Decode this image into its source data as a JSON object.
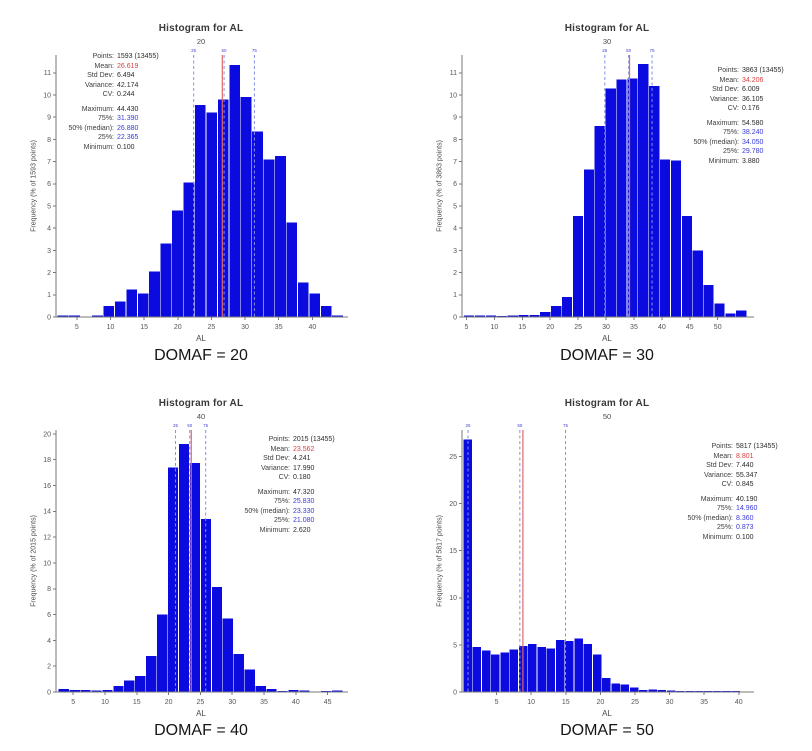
{
  "colors": {
    "bar": "#0b0be0",
    "axis": "#7a7a7a",
    "tick_text": "#555555",
    "mean_line": "#e06868",
    "quartile_line": "#8090e8",
    "marker_text": "#4444cc",
    "stat_red": "#d94040",
    "stat_blue": "#3a3ad9"
  },
  "chart_data": [
    {
      "type": "bar",
      "subtype": "histogram",
      "title": "Histogram for AL",
      "subtitle": "20",
      "caption": "DOMAF = 20",
      "xlabel": "AL",
      "ylabel": "Frequency (% of 1593 points)",
      "legend": "none",
      "grid": "off",
      "stats": {
        "rows": [
          {
            "label": "Points:",
            "value": "1593 (13455)",
            "style": "plain"
          },
          {
            "label": "Mean:",
            "value": "26.619",
            "style": "red"
          },
          {
            "label": "Std Dev:",
            "value": "6.494",
            "style": "plain"
          },
          {
            "label": "Variance:",
            "value": "42.174",
            "style": "plain"
          },
          {
            "label": "CV:",
            "value": "0.244",
            "style": "plain"
          },
          {
            "label": "Maximum:",
            "value": "44.430",
            "style": "plain",
            "gap": true
          },
          {
            "label": "75%:",
            "value": "31.390",
            "style": "blue"
          },
          {
            "label": "50% (median):",
            "value": "26.880",
            "style": "blue"
          },
          {
            "label": "25%:",
            "value": "22.365",
            "style": "blue"
          },
          {
            "label": "Minimum:",
            "value": "0.100",
            "style": "plain"
          }
        ]
      },
      "hist": {
        "bin_start": 2.1,
        "bin_width": 1.7,
        "values": [
          0.07,
          0.07,
          0,
          0.07,
          0.5,
          0.7,
          1.25,
          1.05,
          2.05,
          3.3,
          4.8,
          6.05,
          9.55,
          9.2,
          9.8,
          11.35,
          9.9,
          8.35,
          7.1,
          7.25,
          4.25,
          1.55,
          1.05,
          0.5,
          0.07
        ],
        "x_domain": [
          1.9,
          45.3
        ],
        "y_domain": [
          0,
          11.8
        ],
        "x_ticks": [
          5,
          10,
          15,
          20,
          25,
          30,
          35,
          40
        ],
        "y_ticks": [
          0,
          1,
          2,
          3,
          4,
          5,
          6,
          7,
          8,
          9,
          10,
          11
        ],
        "mean": 26.619,
        "quartiles": [
          22.365,
          26.88,
          31.39
        ],
        "quartile_labels": [
          "25",
          "50",
          "75"
        ]
      }
    },
    {
      "type": "bar",
      "subtype": "histogram",
      "title": "Histogram for AL",
      "subtitle": "30",
      "caption": "DOMAF = 30",
      "xlabel": "AL",
      "ylabel": "Frequency (% of 3863 points)",
      "legend": "none",
      "grid": "off",
      "stats": {
        "rows": [
          {
            "label": "Points:",
            "value": "3863 (13455)",
            "style": "plain"
          },
          {
            "label": "Mean:",
            "value": "34.206",
            "style": "red"
          },
          {
            "label": "Std Dev:",
            "value": "6.009",
            "style": "plain"
          },
          {
            "label": "Variance:",
            "value": "36.105",
            "style": "plain"
          },
          {
            "label": "CV:",
            "value": "0.176",
            "style": "plain"
          },
          {
            "label": "Maximum:",
            "value": "54.580",
            "style": "plain",
            "gap": true
          },
          {
            "label": "75%:",
            "value": "38.240",
            "style": "blue"
          },
          {
            "label": "50% (median):",
            "value": "34.050",
            "style": "blue"
          },
          {
            "label": "25%:",
            "value": "29.780",
            "style": "blue"
          },
          {
            "label": "Minimum:",
            "value": "3.880",
            "style": "plain"
          }
        ]
      },
      "hist": {
        "bin_start": 4.5,
        "bin_width": 1.95,
        "values": [
          0.07,
          0.07,
          0.07,
          0.05,
          0.07,
          0.08,
          0.1,
          0.22,
          0.5,
          0.9,
          4.55,
          6.65,
          8.6,
          10.3,
          10.7,
          10.75,
          11.4,
          10.4,
          7.1,
          7.05,
          4.55,
          3.0,
          1.45,
          0.6,
          0.15,
          0.3
        ],
        "x_domain": [
          4.2,
          56.5
        ],
        "y_domain": [
          0,
          11.8
        ],
        "x_ticks": [
          5,
          10,
          15,
          20,
          25,
          30,
          35,
          40,
          45,
          50
        ],
        "y_ticks": [
          0,
          1,
          2,
          3,
          4,
          5,
          6,
          7,
          8,
          9,
          10,
          11
        ],
        "mean": 34.206,
        "quartiles": [
          29.78,
          34.05,
          38.24
        ],
        "quartile_labels": [
          "25",
          "50",
          "75"
        ]
      }
    },
    {
      "type": "bar",
      "subtype": "histogram",
      "title": "Histogram for AL",
      "subtitle": "40",
      "caption": "DOMAF = 40",
      "xlabel": "AL",
      "ylabel": "Frequency (% of 2015 points)",
      "legend": "none",
      "grid": "off",
      "stats": {
        "rows": [
          {
            "label": "Points:",
            "value": "2015 (13455)",
            "style": "plain"
          },
          {
            "label": "Mean:",
            "value": "23.562",
            "style": "red"
          },
          {
            "label": "Std Dev:",
            "value": "4.241",
            "style": "plain"
          },
          {
            "label": "Variance:",
            "value": "17.990",
            "style": "plain"
          },
          {
            "label": "CV:",
            "value": "0.180",
            "style": "plain"
          },
          {
            "label": "Maximum:",
            "value": "47.320",
            "style": "plain",
            "gap": true
          },
          {
            "label": "75%:",
            "value": "25.830",
            "style": "blue"
          },
          {
            "label": "50% (median):",
            "value": "23.330",
            "style": "blue"
          },
          {
            "label": "25%:",
            "value": "21.080",
            "style": "blue"
          },
          {
            "label": "Minimum:",
            "value": "2.620",
            "style": "plain"
          }
        ]
      },
      "hist": {
        "bin_start": 2.65,
        "bin_width": 1.72,
        "values": [
          0.25,
          0.15,
          0.15,
          0.1,
          0.15,
          0.45,
          0.9,
          1.25,
          2.8,
          6.0,
          17.4,
          19.2,
          17.75,
          13.4,
          8.15,
          5.7,
          2.95,
          1.75,
          0.45,
          0.25,
          0.05,
          0.15,
          0.1,
          0,
          0.07,
          0.1
        ],
        "x_domain": [
          2.3,
          48.2
        ],
        "y_domain": [
          0,
          20.3
        ],
        "x_ticks": [
          5,
          10,
          15,
          20,
          25,
          30,
          35,
          40,
          45
        ],
        "y_ticks": [
          0,
          2,
          4,
          6,
          8,
          10,
          12,
          14,
          16,
          18,
          20
        ],
        "mean": 23.562,
        "quartiles": [
          21.08,
          23.33,
          25.83
        ],
        "quartile_labels": [
          "25",
          "50",
          "75"
        ]
      }
    },
    {
      "type": "bar",
      "subtype": "histogram",
      "title": "Histogram for AL",
      "subtitle": "50",
      "caption": "DOMAF = 50",
      "xlabel": "AL",
      "ylabel": "Frequency (% of 5817 points)",
      "legend": "none",
      "grid": "off",
      "stats": {
        "rows": [
          {
            "label": "Points:",
            "value": "5817 (13455)",
            "style": "plain"
          },
          {
            "label": "Mean:",
            "value": "8.801",
            "style": "red"
          },
          {
            "label": "Std Dev:",
            "value": "7.440",
            "style": "plain"
          },
          {
            "label": "Variance:",
            "value": "55.347",
            "style": "plain"
          },
          {
            "label": "CV:",
            "value": "0.845",
            "style": "plain"
          },
          {
            "label": "Maximum:",
            "value": "40.190",
            "style": "plain",
            "gap": true
          },
          {
            "label": "75%:",
            "value": "14.960",
            "style": "blue"
          },
          {
            "label": "50% (median):",
            "value": "8.360",
            "style": "blue"
          },
          {
            "label": "25%:",
            "value": "0.873",
            "style": "blue"
          },
          {
            "label": "Minimum:",
            "value": "0.100",
            "style": "plain"
          }
        ]
      },
      "hist": {
        "bin_start": 0.15,
        "bin_width": 1.336,
        "values": [
          26.8,
          4.8,
          4.4,
          4.0,
          4.2,
          4.5,
          4.9,
          5.1,
          4.8,
          4.6,
          5.5,
          5.4,
          5.7,
          5.1,
          4.0,
          1.5,
          0.9,
          0.8,
          0.5,
          0.2,
          0.25,
          0.2,
          0.15,
          0.1,
          0.1,
          0.1,
          0.1,
          0.07,
          0.07,
          0.07
        ],
        "x_domain": [
          0.0,
          42.2
        ],
        "y_domain": [
          0,
          27.8
        ],
        "x_ticks": [
          5,
          10,
          15,
          20,
          25,
          30,
          35,
          40
        ],
        "y_ticks": [
          0,
          5,
          10,
          15,
          20,
          25
        ],
        "mean": 8.801,
        "quartiles": [
          0.873,
          8.36,
          14.96
        ],
        "quartile_labels": [
          "25",
          "50",
          "75"
        ]
      }
    }
  ]
}
